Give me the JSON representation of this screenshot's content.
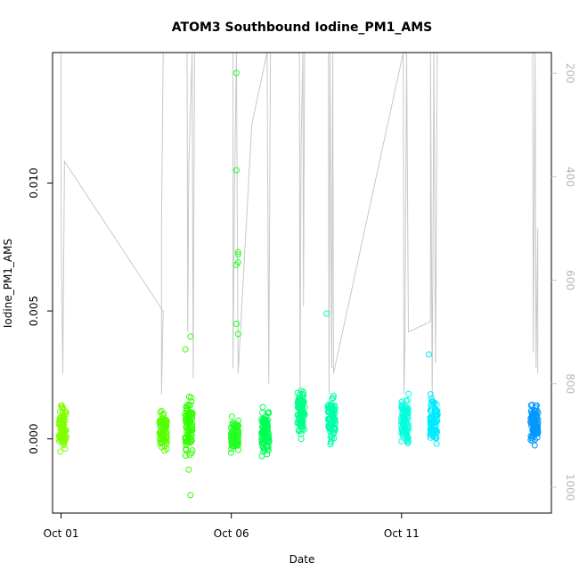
{
  "chart_data": {
    "type": "scatter",
    "title": "ATOM3 Southbound Iodine_PM1_AMS",
    "xlabel": "Date",
    "ylabel": "Iodine_PM1_AMS",
    "x_ticks": [
      {
        "label": "Oct 01",
        "day": 1
      },
      {
        "label": "Oct 06",
        "day": 6
      },
      {
        "label": "Oct 11",
        "day": 11
      }
    ],
    "y_ticks": [
      {
        "label": "0.000",
        "value": 0.0
      },
      {
        "label": "0.005",
        "value": 0.005
      },
      {
        "label": "0.010",
        "value": 0.01
      }
    ],
    "y2_ticks": [
      {
        "label": "200",
        "value": 200
      },
      {
        "label": "400",
        "value": 400
      },
      {
        "label": "600",
        "value": 600
      },
      {
        "label": "800",
        "value": 800
      },
      {
        "label": "1000",
        "value": 1000
      }
    ],
    "xlim": [
      0.75,
      15.4
    ],
    "ylim": [
      -0.0029,
      0.0151
    ],
    "y2lim": [
      1050,
      160
    ],
    "y2_color": "#c8c8c8",
    "clusters": [
      {
        "day": 1.05,
        "center": 0.0005,
        "spread": 0.0011,
        "color": "#80ff00"
      },
      {
        "day": 4.0,
        "center": 0.0004,
        "spread": 0.001,
        "color": "#55ff00"
      },
      {
        "day": 4.75,
        "center": 0.0005,
        "spread": 0.0015,
        "color": "#33ff00"
      },
      {
        "day": 6.1,
        "center": 0.0002,
        "spread": 0.0009,
        "color": "#22ff22"
      },
      {
        "day": 7.0,
        "center": 0.0003,
        "spread": 0.0012,
        "color": "#00ff55"
      },
      {
        "day": 8.05,
        "center": 0.001,
        "spread": 0.0014,
        "color": "#00ff88"
      },
      {
        "day": 8.95,
        "center": 0.0008,
        "spread": 0.0012,
        "color": "#00ffaa"
      },
      {
        "day": 11.1,
        "center": 0.0007,
        "spread": 0.0012,
        "color": "#00ffdd"
      },
      {
        "day": 11.95,
        "center": 0.0006,
        "spread": 0.0013,
        "color": "#00eaff"
      },
      {
        "day": 14.9,
        "center": 0.0006,
        "spread": 0.001,
        "color": "#0099ff"
      }
    ],
    "outliers": [
      {
        "day": 6.15,
        "value": 0.0143,
        "color": "#22ff22"
      },
      {
        "day": 6.15,
        "value": 0.0105,
        "color": "#22ff22"
      },
      {
        "day": 6.2,
        "value": 0.0073,
        "color": "#22ff22"
      },
      {
        "day": 6.2,
        "value": 0.0072,
        "color": "#22ff22"
      },
      {
        "day": 6.2,
        "value": 0.0069,
        "color": "#22ff22"
      },
      {
        "day": 6.15,
        "value": 0.0068,
        "color": "#22ff22"
      },
      {
        "day": 6.15,
        "value": 0.0045,
        "color": "#22ff22"
      },
      {
        "day": 6.2,
        "value": 0.0041,
        "color": "#22ff22"
      },
      {
        "day": 8.8,
        "value": 0.0049,
        "color": "#00ffaa"
      },
      {
        "day": 11.8,
        "value": 0.0033,
        "color": "#00eaff"
      },
      {
        "day": 4.8,
        "value": 0.004,
        "color": "#33ff00"
      },
      {
        "day": 4.65,
        "value": 0.0035,
        "color": "#33ff00"
      },
      {
        "day": 4.75,
        "value": -0.0012,
        "color": "#33ff00"
      },
      {
        "day": 4.8,
        "value": -0.0022,
        "color": "#33ff00"
      },
      {
        "day": 7.05,
        "value": -0.0006,
        "color": "#00ff55"
      }
    ],
    "altitude_track": [
      {
        "day": 1.0,
        "alt": 160
      },
      {
        "day": 1.0,
        "alt": 480
      },
      {
        "day": 1.05,
        "alt": 780
      },
      {
        "day": 1.1,
        "alt": 370
      },
      {
        "day": 4.0,
        "alt": 660
      },
      {
        "day": 3.95,
        "alt": 820
      },
      {
        "day": 3.95,
        "alt": 490
      },
      {
        "day": 4.0,
        "alt": 160
      },
      {
        "day": 4.7,
        "alt": 160
      },
      {
        "day": 4.72,
        "alt": 700
      },
      {
        "day": 4.75,
        "alt": 380
      },
      {
        "day": 4.85,
        "alt": 160
      },
      {
        "day": 4.88,
        "alt": 790
      },
      {
        "day": 4.92,
        "alt": 160
      },
      {
        "day": 6.05,
        "alt": 160
      },
      {
        "day": 6.05,
        "alt": 770
      },
      {
        "day": 6.1,
        "alt": 400
      },
      {
        "day": 6.15,
        "alt": 160
      },
      {
        "day": 6.2,
        "alt": 780
      },
      {
        "day": 6.6,
        "alt": 300
      },
      {
        "day": 7.05,
        "alt": 160
      },
      {
        "day": 7.1,
        "alt": 800
      },
      {
        "day": 7.15,
        "alt": 160
      },
      {
        "day": 8.0,
        "alt": 160
      },
      {
        "day": 8.02,
        "alt": 820
      },
      {
        "day": 8.05,
        "alt": 340
      },
      {
        "day": 8.1,
        "alt": 160
      },
      {
        "day": 8.12,
        "alt": 650
      },
      {
        "day": 8.15,
        "alt": 160
      },
      {
        "day": 8.85,
        "alt": 160
      },
      {
        "day": 8.87,
        "alt": 820
      },
      {
        "day": 8.9,
        "alt": 160
      },
      {
        "day": 8.95,
        "alt": 770
      },
      {
        "day": 8.98,
        "alt": 160
      },
      {
        "day": 9.0,
        "alt": 780
      },
      {
        "day": 11.05,
        "alt": 160
      },
      {
        "day": 11.07,
        "alt": 820
      },
      {
        "day": 11.1,
        "alt": 720
      },
      {
        "day": 11.15,
        "alt": 160
      },
      {
        "day": 11.2,
        "alt": 700
      },
      {
        "day": 11.85,
        "alt": 680
      },
      {
        "day": 11.85,
        "alt": 160
      },
      {
        "day": 11.9,
        "alt": 830
      },
      {
        "day": 11.95,
        "alt": 160
      },
      {
        "day": 12.0,
        "alt": 760
      },
      {
        "day": 12.05,
        "alt": 160
      },
      {
        "day": 14.85,
        "alt": 160
      },
      {
        "day": 14.87,
        "alt": 740
      },
      {
        "day": 14.92,
        "alt": 160
      },
      {
        "day": 14.95,
        "alt": 770
      },
      {
        "day": 15.0,
        "alt": 500
      },
      {
        "day": 15.0,
        "alt": 780
      }
    ],
    "grid": false,
    "legend": "none"
  }
}
